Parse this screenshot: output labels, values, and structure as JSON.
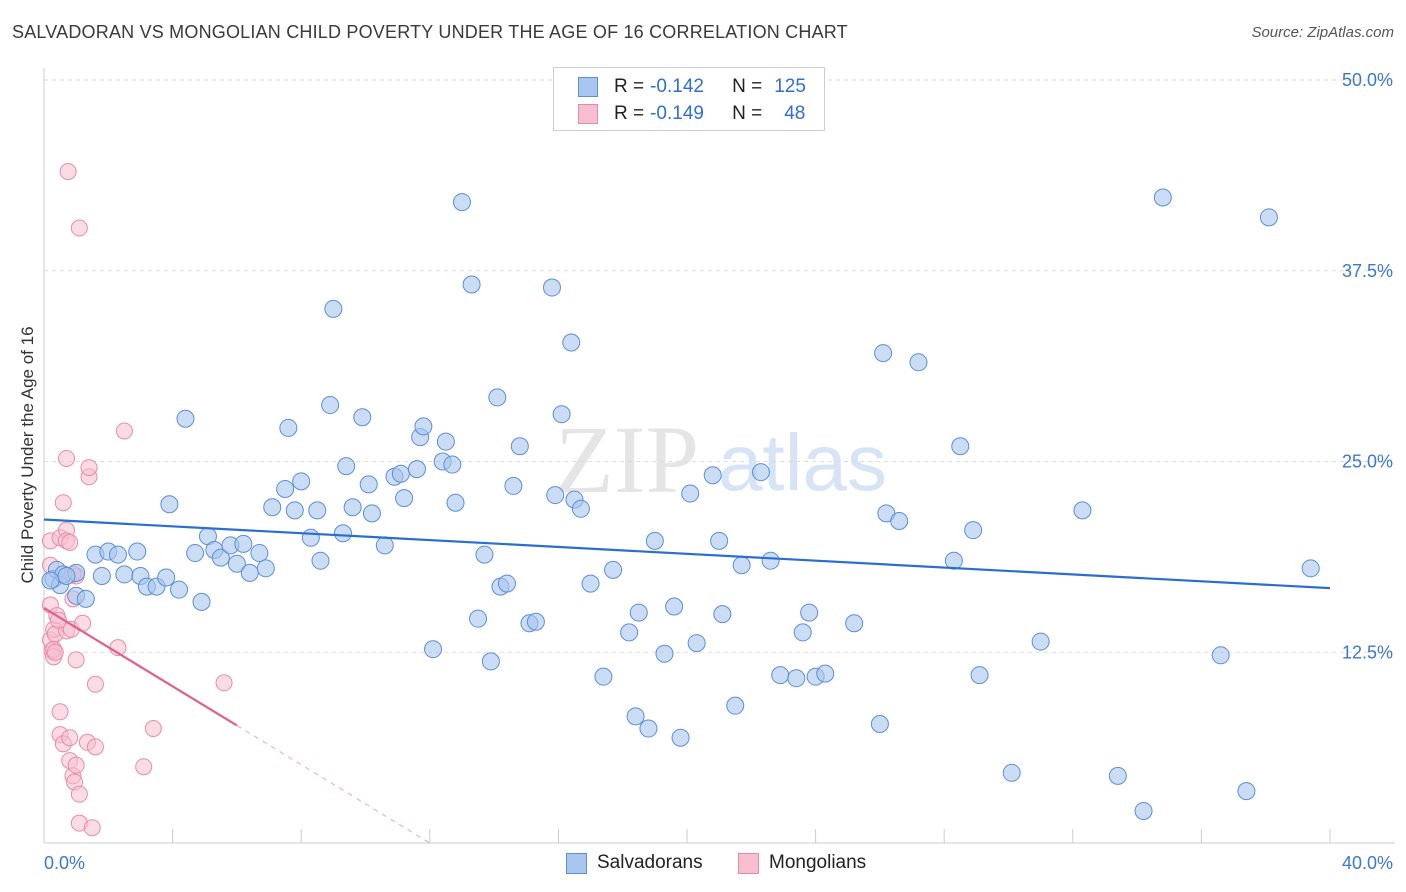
{
  "header": {
    "title": "SALVADORAN VS MONGOLIAN CHILD POVERTY UNDER THE AGE OF 16 CORRELATION CHART",
    "source": "Source: ZipAtlas.com"
  },
  "watermark": {
    "zip": "ZIP",
    "atlas": "atlas"
  },
  "legend": {
    "rows": [
      {
        "r_label": "R =",
        "r_value": "-0.142",
        "n_label": "N =",
        "n_value": "125",
        "color": "#a9c6ef",
        "border": "#5b8fd6"
      },
      {
        "r_label": "R =",
        "r_value": "-0.149",
        "n_label": "N =",
        "n_value": "48",
        "color": "#f7bfd0",
        "border": "#e78aa8"
      }
    ]
  },
  "bottom_legend": {
    "salvadorans": "Salvadorans",
    "mongolians": "Mongolians"
  },
  "colors": {
    "blue_fill": "#a9c6ef",
    "blue_line": "#2a6fd0",
    "pink_fill": "#f7bfd0",
    "pink_line": "#e0608f",
    "axis_text": "#3b78d0"
  },
  "chart_data": {
    "type": "scatter",
    "title": "SALVADORAN VS MONGOLIAN CHILD POVERTY UNDER THE AGE OF 16 CORRELATION CHART",
    "xlabel": "",
    "ylabel": "Child Poverty Under the Age of 16",
    "xlim": [
      0,
      40
    ],
    "ylim": [
      0,
      50
    ],
    "x_tick_labels": [
      "0.0%",
      "40.0%"
    ],
    "y_ticks": [
      12.5,
      25.0,
      37.5,
      50.0
    ],
    "y_tick_labels": [
      "12.5%",
      "25.0%",
      "37.5%",
      "50.0%"
    ],
    "grid": true,
    "series": [
      {
        "name": "Salvadorans",
        "trend": {
          "x": [
            0,
            40
          ],
          "y": [
            21.2,
            16.7
          ]
        },
        "points": [
          [
            0.3,
            17.3
          ],
          [
            0.4,
            17.9
          ],
          [
            0.5,
            16.9
          ],
          [
            0.6,
            17.6
          ],
          [
            1.0,
            16.2
          ],
          [
            1.0,
            17.7
          ],
          [
            1.6,
            18.9
          ],
          [
            1.8,
            17.5
          ],
          [
            2.0,
            19.1
          ],
          [
            2.3,
            18.9
          ],
          [
            2.5,
            17.6
          ],
          [
            2.9,
            19.1
          ],
          [
            3.0,
            17.5
          ],
          [
            3.2,
            16.8
          ],
          [
            3.5,
            16.8
          ],
          [
            3.8,
            17.4
          ],
          [
            3.9,
            22.2
          ],
          [
            4.2,
            16.6
          ],
          [
            4.4,
            27.8
          ],
          [
            4.7,
            19.0
          ],
          [
            4.9,
            15.8
          ],
          [
            5.1,
            20.1
          ],
          [
            5.3,
            19.2
          ],
          [
            5.5,
            18.7
          ],
          [
            5.8,
            19.5
          ],
          [
            6.0,
            18.3
          ],
          [
            6.2,
            19.6
          ],
          [
            6.4,
            17.7
          ],
          [
            6.7,
            19.0
          ],
          [
            6.9,
            18.0
          ],
          [
            7.1,
            22.0
          ],
          [
            7.5,
            23.2
          ],
          [
            7.6,
            27.2
          ],
          [
            7.8,
            21.8
          ],
          [
            8.0,
            23.7
          ],
          [
            8.3,
            20.0
          ],
          [
            8.5,
            21.8
          ],
          [
            8.6,
            18.5
          ],
          [
            8.9,
            28.7
          ],
          [
            9.0,
            35.0
          ],
          [
            9.3,
            20.3
          ],
          [
            9.4,
            24.7
          ],
          [
            9.6,
            22.0
          ],
          [
            9.9,
            27.9
          ],
          [
            10.1,
            23.5
          ],
          [
            10.2,
            21.6
          ],
          [
            10.6,
            19.5
          ],
          [
            10.9,
            24.0
          ],
          [
            11.1,
            24.2
          ],
          [
            11.2,
            22.6
          ],
          [
            11.6,
            24.5
          ],
          [
            11.7,
            26.6
          ],
          [
            11.8,
            27.3
          ],
          [
            12.1,
            12.7
          ],
          [
            12.4,
            25.0
          ],
          [
            12.5,
            26.3
          ],
          [
            12.7,
            24.8
          ],
          [
            12.8,
            22.3
          ],
          [
            13.0,
            42.0
          ],
          [
            13.3,
            36.6
          ],
          [
            13.5,
            14.7
          ],
          [
            13.7,
            18.9
          ],
          [
            13.9,
            11.9
          ],
          [
            14.1,
            29.2
          ],
          [
            14.2,
            16.8
          ],
          [
            14.4,
            17.0
          ],
          [
            14.6,
            23.4
          ],
          [
            14.8,
            26.0
          ],
          [
            15.1,
            14.4
          ],
          [
            15.3,
            14.5
          ],
          [
            15.8,
            36.4
          ],
          [
            15.9,
            22.8
          ],
          [
            16.1,
            28.1
          ],
          [
            16.4,
            32.8
          ],
          [
            16.5,
            22.5
          ],
          [
            16.7,
            21.9
          ],
          [
            17.0,
            17.0
          ],
          [
            17.4,
            10.9
          ],
          [
            17.7,
            17.9
          ],
          [
            18.2,
            13.8
          ],
          [
            18.4,
            8.3
          ],
          [
            18.5,
            15.1
          ],
          [
            18.8,
            7.5
          ],
          [
            19.0,
            19.8
          ],
          [
            19.3,
            12.4
          ],
          [
            19.6,
            15.5
          ],
          [
            19.8,
            6.9
          ],
          [
            20.1,
            22.9
          ],
          [
            20.3,
            13.1
          ],
          [
            20.8,
            24.1
          ],
          [
            21.0,
            19.8
          ],
          [
            21.1,
            15.0
          ],
          [
            21.5,
            9.0
          ],
          [
            21.7,
            18.2
          ],
          [
            22.3,
            24.3
          ],
          [
            22.6,
            18.5
          ],
          [
            22.9,
            11.0
          ],
          [
            23.4,
            10.8
          ],
          [
            23.6,
            13.8
          ],
          [
            23.8,
            15.1
          ],
          [
            24.0,
            10.9
          ],
          [
            24.3,
            11.1
          ],
          [
            25.2,
            14.4
          ],
          [
            26.0,
            7.8
          ],
          [
            26.1,
            32.1
          ],
          [
            26.2,
            21.6
          ],
          [
            26.6,
            21.1
          ],
          [
            27.2,
            31.5
          ],
          [
            28.3,
            18.5
          ],
          [
            28.5,
            26.0
          ],
          [
            28.9,
            20.5
          ],
          [
            29.1,
            11.0
          ],
          [
            30.1,
            4.6
          ],
          [
            31.0,
            13.2
          ],
          [
            32.3,
            21.8
          ],
          [
            33.4,
            4.4
          ],
          [
            34.2,
            2.1
          ],
          [
            34.8,
            42.3
          ],
          [
            36.6,
            12.3
          ],
          [
            37.4,
            3.4
          ],
          [
            38.1,
            41.0
          ],
          [
            39.4,
            18.0
          ],
          [
            0.2,
            17.2
          ],
          [
            0.7,
            17.5
          ],
          [
            1.3,
            16.0
          ]
        ]
      },
      {
        "name": "Mongolians",
        "trend": {
          "x": [
            0,
            6.0
          ],
          "y": [
            15.4,
            7.7
          ]
        },
        "points": [
          [
            0.2,
            19.8
          ],
          [
            0.2,
            18.2
          ],
          [
            0.2,
            15.6
          ],
          [
            0.2,
            13.3
          ],
          [
            0.25,
            12.6
          ],
          [
            0.3,
            12.7
          ],
          [
            0.3,
            12.2
          ],
          [
            0.3,
            14.0
          ],
          [
            0.35,
            13.7
          ],
          [
            0.35,
            12.5
          ],
          [
            0.4,
            14.9
          ],
          [
            0.5,
            7.1
          ],
          [
            0.5,
            8.6
          ],
          [
            0.5,
            20.0
          ],
          [
            0.6,
            22.3
          ],
          [
            0.6,
            6.5
          ],
          [
            0.7,
            20.5
          ],
          [
            0.7,
            19.8
          ],
          [
            0.7,
            25.2
          ],
          [
            0.7,
            13.9
          ],
          [
            0.75,
            44.0
          ],
          [
            0.8,
            19.7
          ],
          [
            0.8,
            5.4
          ],
          [
            0.8,
            6.9
          ],
          [
            0.85,
            14.0
          ],
          [
            0.9,
            4.4
          ],
          [
            0.9,
            16.0
          ],
          [
            0.95,
            4.0
          ],
          [
            1.0,
            5.1
          ],
          [
            1.0,
            12.0
          ],
          [
            1.0,
            17.5
          ],
          [
            1.1,
            3.2
          ],
          [
            1.1,
            40.3
          ],
          [
            1.1,
            1.3
          ],
          [
            1.2,
            14.4
          ],
          [
            1.35,
            6.6
          ],
          [
            1.4,
            24.0
          ],
          [
            1.4,
            24.6
          ],
          [
            1.5,
            1.0
          ],
          [
            1.6,
            6.3
          ],
          [
            1.6,
            10.4
          ],
          [
            2.3,
            12.8
          ],
          [
            2.5,
            27.0
          ],
          [
            3.1,
            5.0
          ],
          [
            3.4,
            7.5
          ],
          [
            5.6,
            10.5
          ],
          [
            0.45,
            14.6
          ],
          [
            0.9,
            17.6
          ]
        ]
      }
    ]
  }
}
